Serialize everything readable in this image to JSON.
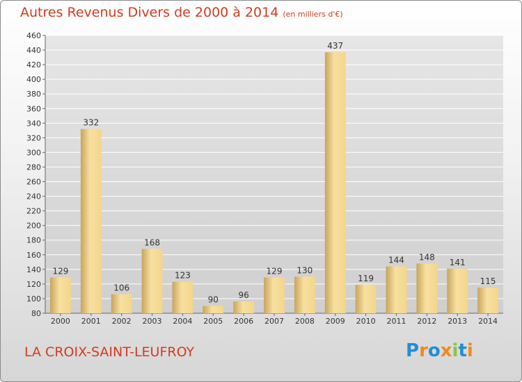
{
  "title": "Autres Revenus Divers de 2000 à 2014",
  "subtitle": "(en milliers d'€)",
  "place_name": "LA CROIX-SAINT-LEUFROY",
  "logo": {
    "text": "Proxiti",
    "letters": [
      {
        "ch": "P",
        "color": "#1f8fd6"
      },
      {
        "ch": "r",
        "color": "#f08a1c"
      },
      {
        "ch": "o",
        "color": "#1f8fd6"
      },
      {
        "ch": "x",
        "color": "#f08a1c"
      },
      {
        "ch": "i",
        "color": "#8cc63f"
      },
      {
        "ch": "t",
        "color": "#1f8fd6"
      },
      {
        "ch": "i",
        "color": "#f08a1c"
      }
    ]
  },
  "colors": {
    "title": "#d33b1f",
    "bar_light": "#f7e0a0",
    "bar_dark": "#c9a45c",
    "grid": "#ffffff",
    "text": "#333333"
  },
  "chart_data": {
    "type": "bar",
    "categories": [
      "2000",
      "2001",
      "2002",
      "2003",
      "2004",
      "2005",
      "2006",
      "2007",
      "2008",
      "2009",
      "2010",
      "2011",
      "2012",
      "2013",
      "2014"
    ],
    "values": [
      129,
      332,
      106,
      168,
      123,
      90,
      96,
      129,
      130,
      437,
      119,
      144,
      148,
      141,
      115
    ],
    "ylim": [
      80,
      460
    ],
    "ytick_step": 20,
    "grid": true,
    "data_labels": true
  }
}
